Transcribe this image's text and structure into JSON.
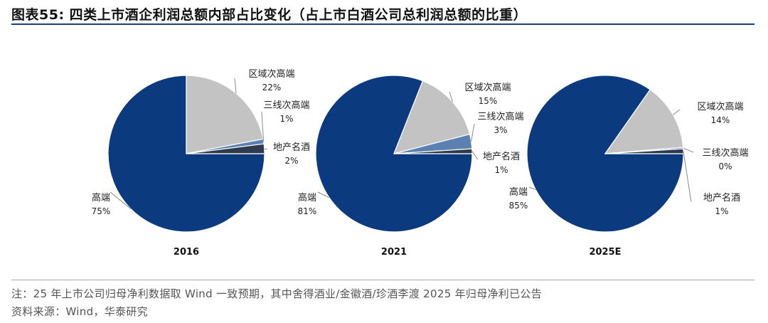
{
  "title": "图表55:  四类上市酒企利润总额内部占比变化（占上市白酒公司总利润总额的比重）",
  "notes": [
    "注：25 年上市公司归母净利数据取 Wind 一致预期，其中舍得酒业/金徽酒/珍酒李渡 2025 年归母净利已公告",
    "资料来源：Wind，华泰研究"
  ],
  "colors": {
    "高端": "#0b3a7e",
    "区域次高端": "#c3c3c3",
    "三线次高端": "#5b80b2",
    "地产名酒": "#2f3b4d"
  },
  "chart_data": [
    {
      "type": "pie",
      "xlabel": "2016",
      "categories": [
        "高端",
        "区域次高端",
        "三线次高端",
        "地产名酒"
      ],
      "values": [
        75,
        22,
        1,
        2
      ],
      "labels": [
        "75%",
        "22%",
        "1%",
        "2%"
      ]
    },
    {
      "type": "pie",
      "xlabel": "2021",
      "categories": [
        "高端",
        "区域次高端",
        "三线次高端",
        "地产名酒"
      ],
      "values": [
        81,
        15,
        3,
        1
      ],
      "labels": [
        "81%",
        "15%",
        "3%",
        "1%"
      ]
    },
    {
      "type": "pie",
      "xlabel": "2025E",
      "categories": [
        "高端",
        "区域次高端",
        "三线次高端",
        "地产名酒"
      ],
      "values": [
        85,
        14,
        0.3,
        1
      ],
      "labels": [
        "85%",
        "14%",
        "0%",
        "1%"
      ]
    }
  ]
}
